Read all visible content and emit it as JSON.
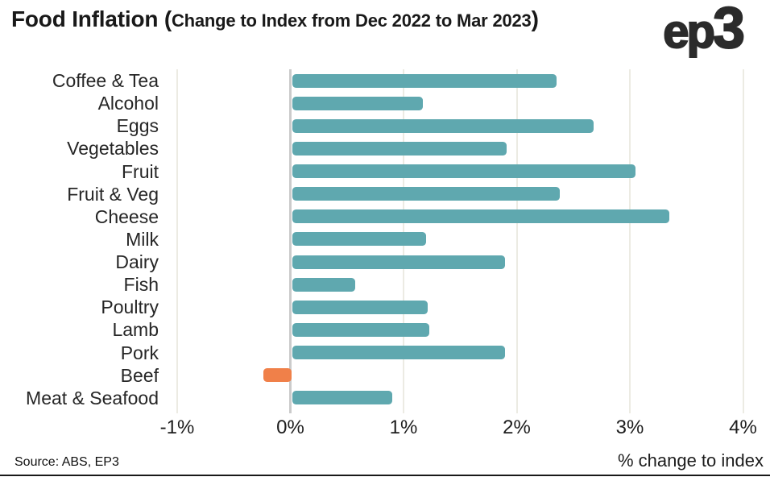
{
  "header": {
    "title_prefix": "Food Inflation (",
    "title_sub": "Change to Index from Dec 2022 to Mar 2023",
    "title_close": ")",
    "logo_prefix": "ep",
    "logo_suffix": "3"
  },
  "chart_data": {
    "type": "bar",
    "orientation": "horizontal",
    "title": "Food Inflation (Change to Index from Dec 2022 to Mar 2023)",
    "xlabel": "% change to index",
    "source": "Source: ABS, EP3",
    "categories": [
      "Coffee & Tea",
      "Alcohol",
      "Eggs",
      "Vegetables",
      "Fruit",
      "Fruit & Veg",
      "Cheese",
      "Milk",
      "Dairy",
      "Fish",
      "Poultry",
      "Lamb",
      "Pork",
      "Beef",
      "Meat & Seafood"
    ],
    "values": [
      2.35,
      1.17,
      2.68,
      1.91,
      3.05,
      2.38,
      3.35,
      1.2,
      1.9,
      0.57,
      1.21,
      1.23,
      1.9,
      -0.24,
      0.9
    ],
    "x_ticks": [
      {
        "label": "-1%",
        "value": -1
      },
      {
        "label": "0%",
        "value": 0
      },
      {
        "label": "1%",
        "value": 1
      },
      {
        "label": "2%",
        "value": 2
      },
      {
        "label": "3%",
        "value": 3
      },
      {
        "label": "4%",
        "value": 4
      }
    ],
    "xlim": [
      -1.16,
      4.24
    ],
    "grid": "vertical-light",
    "legend": "none",
    "bar_color": "#5FA8AF",
    "negative_bar_color": "#F08049",
    "zero_line_color": "#CBCBCB",
    "grid_color": "#ECEBE3",
    "highlighted_category": "Beef"
  },
  "footer": {
    "source": "Source: ABS, EP3",
    "xlabel": "% change to index"
  }
}
